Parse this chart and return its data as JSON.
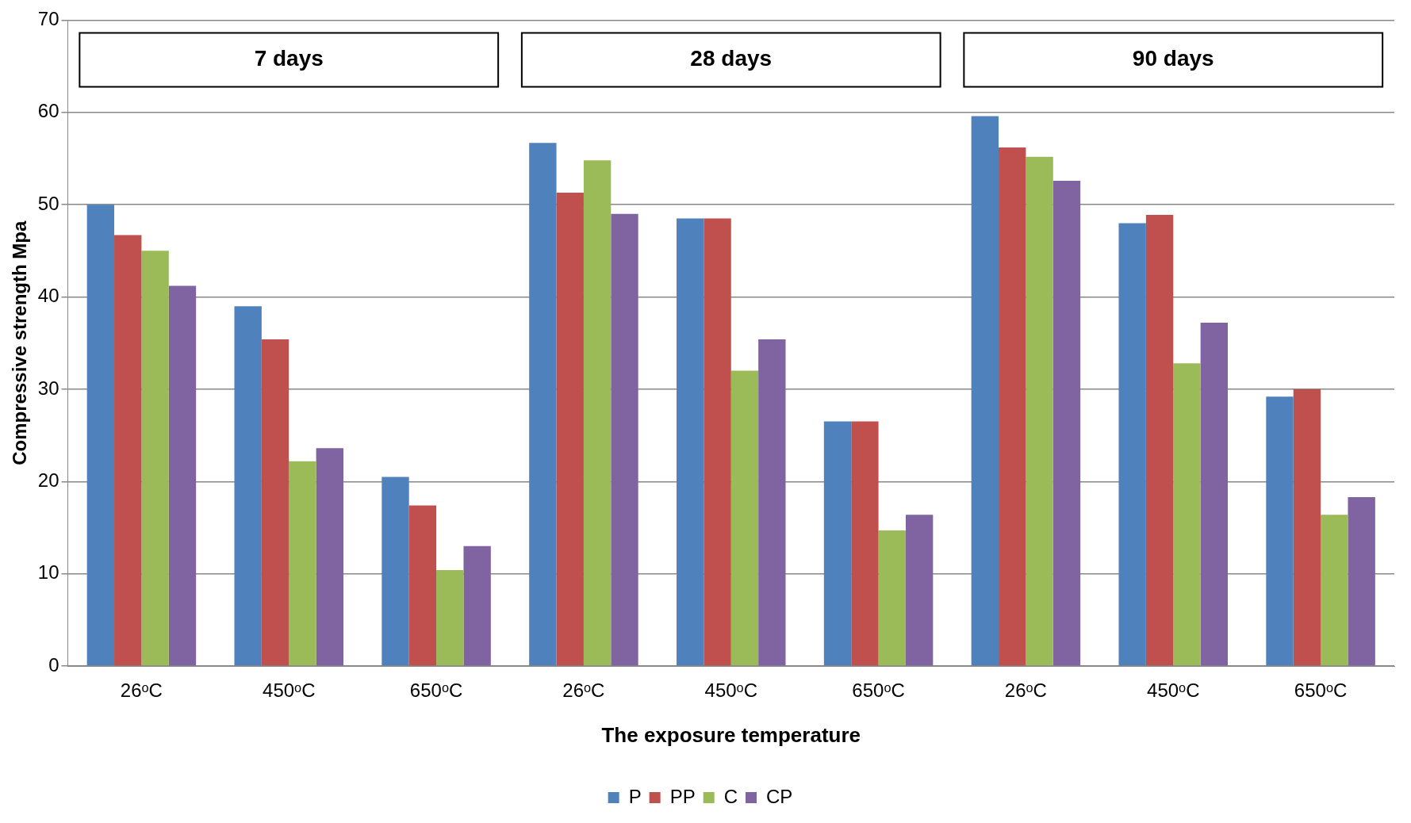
{
  "chart_data": {
    "type": "bar",
    "xlabel": "The exposure temperature",
    "ylabel": "Compressive strength Mpa",
    "categories": [
      "26ᵒC",
      "450ᵒC",
      "650ᵒC",
      "26ᵒC",
      "450ᵒC",
      "650ᵒC",
      "26ᵒC",
      "450ᵒC",
      "650ᵒC"
    ],
    "series": [
      {
        "name": "P",
        "color": "#4f81bd",
        "values": [
          50,
          39,
          20.5,
          56.7,
          48.5,
          26.5,
          59.6,
          48,
          29.2
        ]
      },
      {
        "name": "PP",
        "color": "#c0504d",
        "values": [
          46.7,
          35.4,
          17.4,
          51.3,
          48.5,
          26.5,
          56.2,
          48.9,
          30
        ]
      },
      {
        "name": "C",
        "color": "#9bbb59",
        "values": [
          45,
          22.2,
          10.4,
          54.8,
          32,
          14.7,
          55.2,
          32.8,
          16.4
        ]
      },
      {
        "name": "CP",
        "color": "#8064a2",
        "values": [
          41.2,
          23.6,
          13,
          49,
          35.4,
          16.4,
          52.6,
          37.2,
          18.3
        ]
      }
    ],
    "ylim": [
      0,
      70
    ],
    "yticks": [
      0,
      10,
      20,
      30,
      40,
      50,
      60,
      70
    ],
    "grid": "y",
    "legend": "bottom",
    "annotations": [
      "7 days",
      "28 days",
      "90 days"
    ]
  }
}
